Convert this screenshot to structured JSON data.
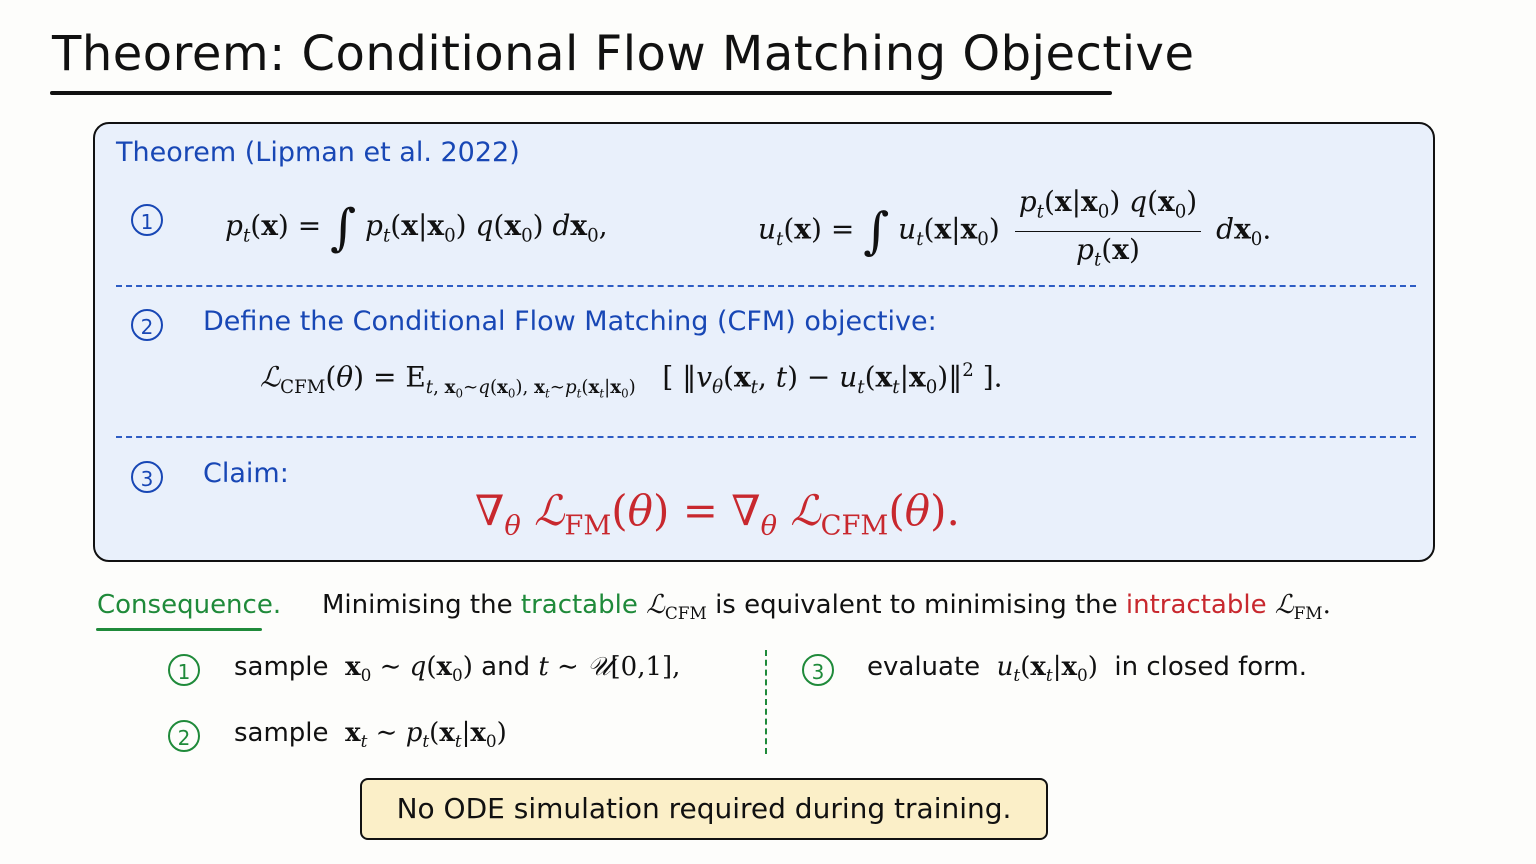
{
  "title": "Theorem: Conditional Flow Matching Objective",
  "theorem_box": {
    "header": "Theorem (Lipman et al. 2022)",
    "item1": {
      "number": "1"
    },
    "item2": {
      "number": "2",
      "text": "Define the Conditional Flow Matching (CFM) objective:"
    },
    "item3": {
      "number": "3",
      "text": "Claim:"
    }
  },
  "consequence": {
    "label": "Consequence.",
    "sentence_prefix": "Minimising the",
    "tractable": "tractable",
    "sentence_mid": "is equivalent to minimising the",
    "intractable": "intractable",
    "steps": [
      {
        "number": "1",
        "word": "sample",
        "and": "and"
      },
      {
        "number": "2",
        "word": "sample"
      },
      {
        "number": "3",
        "word": "evaluate",
        "suffix": "in closed form."
      }
    ]
  },
  "note": "No ODE simulation required during training.",
  "colors": {
    "accent_blue": "#1847b5",
    "accent_green": "#1f8a3a",
    "accent_red": "#c8282e",
    "box_fill": "#e9f0fb",
    "note_fill": "#fbefc8"
  }
}
